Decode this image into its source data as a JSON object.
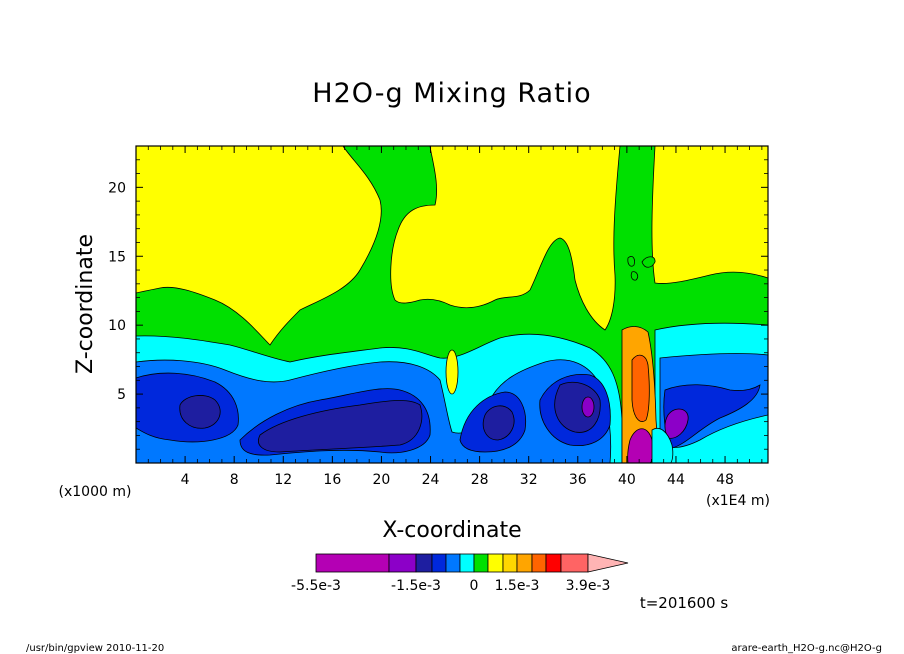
{
  "chart_data": {
    "type": "contour",
    "title": "H2O-g Mixing Ratio",
    "xlabel": "X-coordinate",
    "ylabel": "Z-coordinate",
    "x_unit_left": "(x1000 m)",
    "x_unit_right": "(x1E4 m)",
    "xlim": [
      0,
      51.5
    ],
    "ylim": [
      0,
      23
    ],
    "x_ticks": [
      "4",
      "8",
      "12",
      "16",
      "20",
      "24",
      "28",
      "32",
      "36",
      "40",
      "44",
      "48"
    ],
    "x_tick_values": [
      4,
      8,
      12,
      16,
      20,
      24,
      28,
      32,
      36,
      40,
      44,
      48
    ],
    "y_ticks": [
      "5",
      "10",
      "15",
      "20"
    ],
    "y_tick_values": [
      5,
      10,
      15,
      20
    ],
    "levels": [
      -0.0055,
      -0.0035,
      -0.0025,
      -0.0015,
      -0.001,
      -0.0005,
      0,
      0.0005,
      0.001,
      0.0015,
      0.002,
      0.0025,
      0.003,
      0.0039
    ],
    "colorbar_labels": [
      "-5.5e-3",
      "-1.5e-3",
      "0",
      "1.5e-3",
      "3.9e-3"
    ],
    "colorbar_colors": [
      "#b400b4",
      "#8c00c8",
      "#1e1ea0",
      "#0028dc",
      "#0078ff",
      "#00ffff",
      "#00e000",
      "#ffff00",
      "#ffd700",
      "#ffa500",
      "#ff6400",
      "#ff0000",
      "#ff6464",
      "#ffb4b4"
    ],
    "grid": false,
    "legend": "colorbar bottom"
  },
  "time_label": "t=201600 s",
  "footer_left": "/usr/bin/gpview   2010-11-20",
  "footer_right": "arare-earth_H2O-g.nc@H2O-g"
}
